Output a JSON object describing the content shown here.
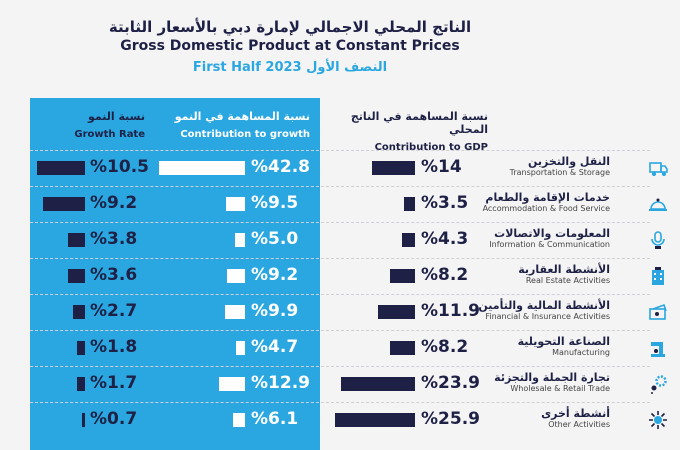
{
  "title_ar": "الناتج المحلي الاجمالي لإمارة دبي بالأسعار الثابتة",
  "title_en": "Gross Domestic Product at Constant Prices",
  "subtitle": "First Half 2023 النصف الأول",
  "colors": {
    "panel": "#2aa7e0",
    "bar_dark": "#1e2145",
    "bar_light": "#ffffff",
    "accent": "#2aa7e0"
  },
  "chart_data": {
    "type": "table",
    "columns": [
      {
        "key": "growth",
        "ar": "نسبة النمو",
        "en": "Growth Rate"
      },
      {
        "key": "contrib",
        "ar": "نسبة المساهمة في النمو",
        "en": "Contribution to growth"
      },
      {
        "key": "gdp",
        "ar": "نسبة المساهمة في الناتج المحلي",
        "en": "Contribution to GDP"
      }
    ],
    "rows": [
      {
        "ar": "النقل والتخزين",
        "en": "Transportation & Storage",
        "icon": "truck-icon",
        "growth": 10.5,
        "contrib": 42.8,
        "gdp": 14
      },
      {
        "ar": "خدمات الإقامة والطعام",
        "en": "Accommodation & Food Service",
        "icon": "cloche-icon",
        "growth": 9.2,
        "contrib": 9.5,
        "gdp": 3.5
      },
      {
        "ar": "المعلومات والاتصالات",
        "en": "Information & Communication",
        "icon": "microphone-icon",
        "growth": 3.8,
        "contrib": 5.0,
        "gdp": 4.3
      },
      {
        "ar": "الأنشطة العقارية",
        "en": "Real Estate Activities",
        "icon": "building-icon",
        "growth": 3.6,
        "contrib": 9.2,
        "gdp": 8.2
      },
      {
        "ar": "الأنشطة المالية والتأمين",
        "en": "Financial & Insurance Activities",
        "icon": "money-icon",
        "growth": 2.7,
        "contrib": 9.9,
        "gdp": 11.9
      },
      {
        "ar": "الصناعة التحويلية",
        "en": "Manufacturing",
        "icon": "machine-icon",
        "growth": 1.8,
        "contrib": 4.7,
        "gdp": 8.2
      },
      {
        "ar": "تجارة الجملة والتجزئة",
        "en": "Wholesale & Retail Trade",
        "icon": "gears-icon",
        "growth": 1.7,
        "contrib": 12.9,
        "gdp": 23.9
      },
      {
        "ar": "أنشطة أخرى",
        "en": "Other Activities",
        "icon": "sparkle-icon",
        "growth": 0.7,
        "contrib": 6.1,
        "gdp": 25.9
      }
    ],
    "value_prefix": "%"
  }
}
